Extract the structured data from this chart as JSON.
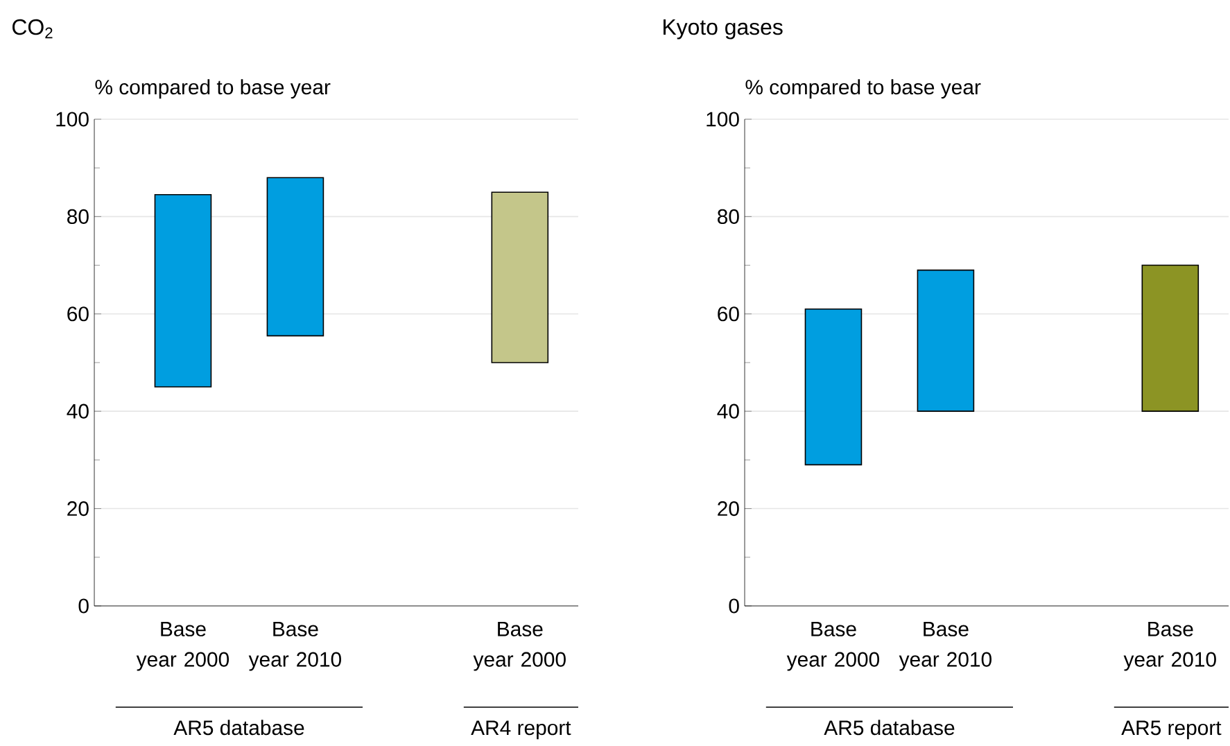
{
  "chart_data": [
    {
      "type": "bar",
      "title": "CO$_{2}$",
      "ylabel": "% compared to base year",
      "categories": [
        "Base year 2000",
        "Base year 2010",
        null,
        "Base year 2000"
      ],
      "values": [
        39.5,
        32.5,
        null,
        35
      ],
      "base": [
        45,
        55.5,
        null,
        50
      ],
      "colors": [
        "#009ee0",
        "#009ee0",
        null,
        "#c4c68a"
      ],
      "ylim": [
        0,
        100
      ],
      "yticks": [
        0,
        20,
        40,
        60,
        80,
        100
      ],
      "grid": "y",
      "annotations": [
        "AR5 database",
        "AR4 report"
      ]
    },
    {
      "type": "bar",
      "title": "Kyoto gases",
      "ylabel": "% compared to base year",
      "categories": [
        "Base year 2000",
        "Base year 2010",
        null,
        "Base year 2010"
      ],
      "values": [
        32,
        29,
        null,
        30
      ],
      "base": [
        29,
        40,
        null,
        40
      ],
      "colors": [
        "#009ee0",
        "#009ee0",
        null,
        "#8c9424"
      ],
      "ylim": [
        0,
        100
      ],
      "yticks": [
        0,
        20,
        40,
        60,
        80,
        100
      ],
      "grid": "y",
      "annotations": [
        "AR5 database",
        "AR5 report"
      ]
    }
  ]
}
